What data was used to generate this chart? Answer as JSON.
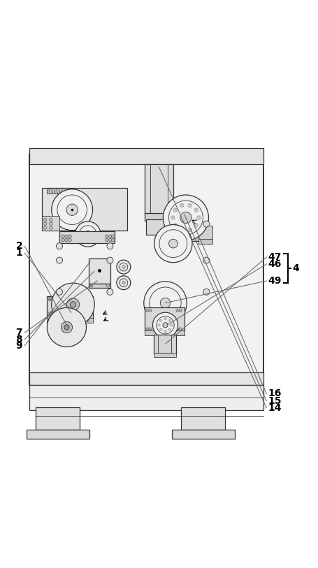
{
  "bg_color": "#f0f0f0",
  "line_color": "#333333",
  "dark_line": "#111111",
  "fig_width": 4.55,
  "fig_height": 8.13
}
